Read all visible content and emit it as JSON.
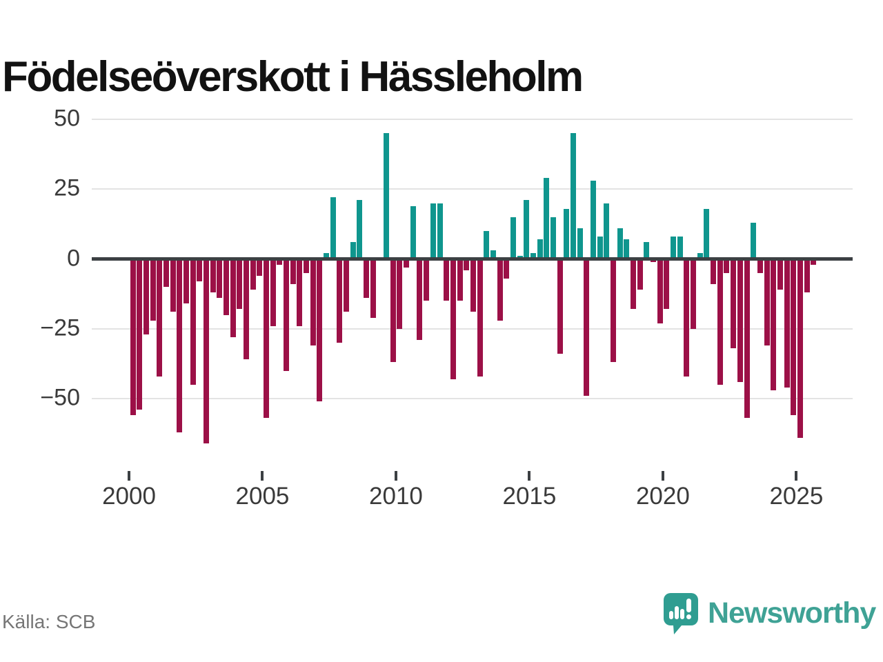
{
  "title": "Födelseöverskott i Hässleholm",
  "source": "Källa: SCB",
  "brand": {
    "name": "Newsworthy",
    "wordmark_color": "#3FA295",
    "icon_color": "#2F9D91",
    "icon": "newsworthy-bubble-barchart-icon"
  },
  "chart_data": {
    "type": "bar",
    "title": "Födelseöverskott i Hässleholm",
    "frequency": "quarterly",
    "start": "2000Q1",
    "end": "2025Q3",
    "legend": "none",
    "grid": true,
    "ylim": [
      -67,
      53
    ],
    "yticks": [
      {
        "label": "50",
        "value": 50
      },
      {
        "label": "25",
        "value": 25
      },
      {
        "label": "0",
        "value": 0
      },
      {
        "label": "−25",
        "value": -25
      },
      {
        "label": "−50",
        "value": -50
      }
    ],
    "xticks": [
      {
        "label": "2000",
        "year": 2000
      },
      {
        "label": "2005",
        "year": 2005
      },
      {
        "label": "2010",
        "year": 2010
      },
      {
        "label": "2015",
        "year": 2015
      },
      {
        "label": "2020",
        "year": 2020
      },
      {
        "label": "2025",
        "year": 2025
      }
    ],
    "colors": {
      "positive": "#0F968E",
      "negative": "#9C1047"
    },
    "series_by_year": [
      {
        "year": 2000,
        "q": [
          -56,
          -54,
          -27,
          -22
        ]
      },
      {
        "year": 2001,
        "q": [
          -42,
          -10,
          -19,
          -62
        ]
      },
      {
        "year": 2002,
        "q": [
          -16,
          -45,
          -8,
          -66
        ]
      },
      {
        "year": 2003,
        "q": [
          -12,
          -14,
          -20,
          -28
        ]
      },
      {
        "year": 2004,
        "q": [
          -18,
          -36,
          -11,
          -6
        ]
      },
      {
        "year": 2005,
        "q": [
          -57,
          -24,
          -2,
          -40
        ]
      },
      {
        "year": 2006,
        "q": [
          -9,
          -24,
          -5,
          -31
        ]
      },
      {
        "year": 2007,
        "q": [
          -51,
          2,
          22,
          -30
        ]
      },
      {
        "year": 2008,
        "q": [
          -19,
          6,
          21,
          -14
        ]
      },
      {
        "year": 2009,
        "q": [
          -21,
          0,
          45,
          -37
        ]
      },
      {
        "year": 2010,
        "q": [
          -25,
          -3,
          19,
          -29
        ]
      },
      {
        "year": 2011,
        "q": [
          -15,
          20,
          20,
          -15
        ]
      },
      {
        "year": 2012,
        "q": [
          -43,
          -15,
          -4,
          -19
        ]
      },
      {
        "year": 2013,
        "q": [
          -42,
          10,
          3,
          -22
        ]
      },
      {
        "year": 2014,
        "q": [
          -7,
          15,
          1,
          21
        ]
      },
      {
        "year": 2015,
        "q": [
          2,
          7,
          29,
          15
        ]
      },
      {
        "year": 2016,
        "q": [
          -34,
          18,
          45,
          11
        ]
      },
      {
        "year": 2017,
        "q": [
          -49,
          28,
          8,
          20
        ]
      },
      {
        "year": 2018,
        "q": [
          -37,
          11,
          7,
          -18
        ]
      },
      {
        "year": 2019,
        "q": [
          -11,
          6,
          -1,
          -23
        ]
      },
      {
        "year": 2020,
        "q": [
          -18,
          8,
          8,
          -42
        ]
      },
      {
        "year": 2021,
        "q": [
          -25,
          2,
          18,
          -9
        ]
      },
      {
        "year": 2022,
        "q": [
          -45,
          -5,
          -32,
          -44
        ]
      },
      {
        "year": 2023,
        "q": [
          -57,
          13,
          -5,
          -31
        ]
      },
      {
        "year": 2024,
        "q": [
          -47,
          -11,
          -46,
          -56
        ]
      },
      {
        "year": 2025,
        "q": [
          -64,
          -12,
          -2
        ]
      }
    ]
  }
}
